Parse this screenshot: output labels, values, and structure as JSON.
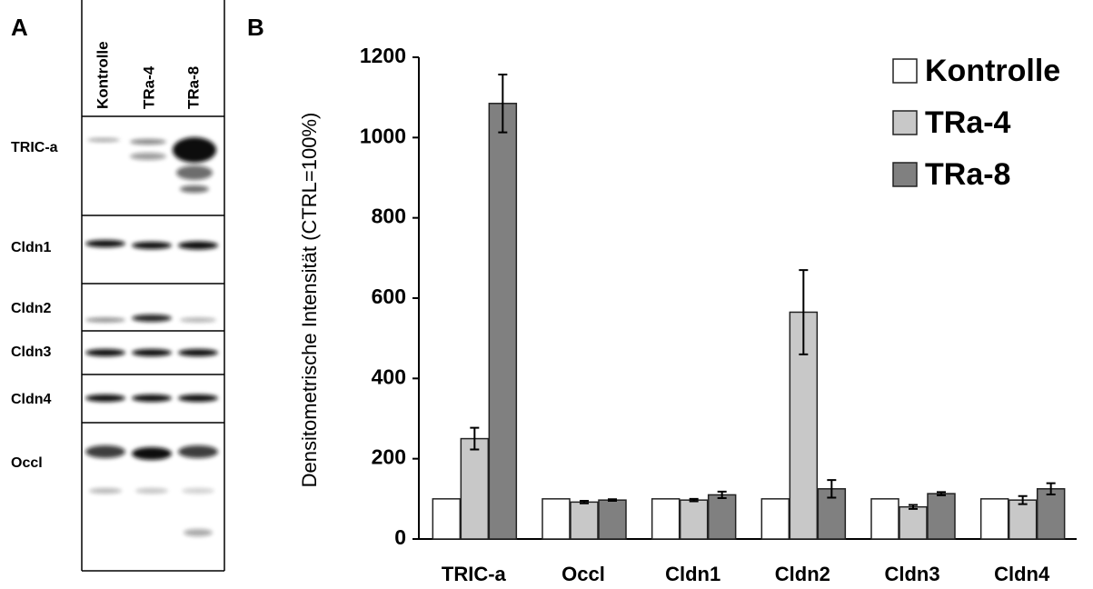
{
  "panel_a": {
    "label": "A",
    "lanes": [
      "Kontrolle",
      "TRa-4",
      "TRa-8"
    ],
    "rows": [
      "TRIC-a",
      "Cldn1",
      "Cldn2",
      "Cldn3",
      "Cldn4",
      "Occl"
    ]
  },
  "panel_b_label": "B",
  "chart_data": {
    "type": "bar",
    "ylabel": "Densitometrische Intensität (CTRL=100%)",
    "categories": [
      "TRIC-a",
      "Occl",
      "Cldn1",
      "Cldn2",
      "Cldn3",
      "Cldn4"
    ],
    "series": [
      {
        "name": "Kontrolle",
        "color": "#ffffff",
        "values": [
          100,
          100,
          100,
          100,
          100,
          100
        ]
      },
      {
        "name": "TRa-4",
        "color": "#c8c8c8",
        "values": [
          250,
          92,
          97,
          565,
          80,
          97
        ],
        "errors": [
          27,
          3,
          3,
          105,
          5,
          10
        ]
      },
      {
        "name": "TRa-8",
        "color": "#808080",
        "values": [
          1085,
          97,
          110,
          125,
          113,
          125
        ],
        "errors": [
          72,
          2,
          8,
          22,
          4,
          14
        ]
      }
    ],
    "ylim": [
      0,
      1200
    ],
    "yticks": [
      0,
      200,
      400,
      600,
      800,
      1000,
      1200
    ],
    "legend": "top-right"
  }
}
